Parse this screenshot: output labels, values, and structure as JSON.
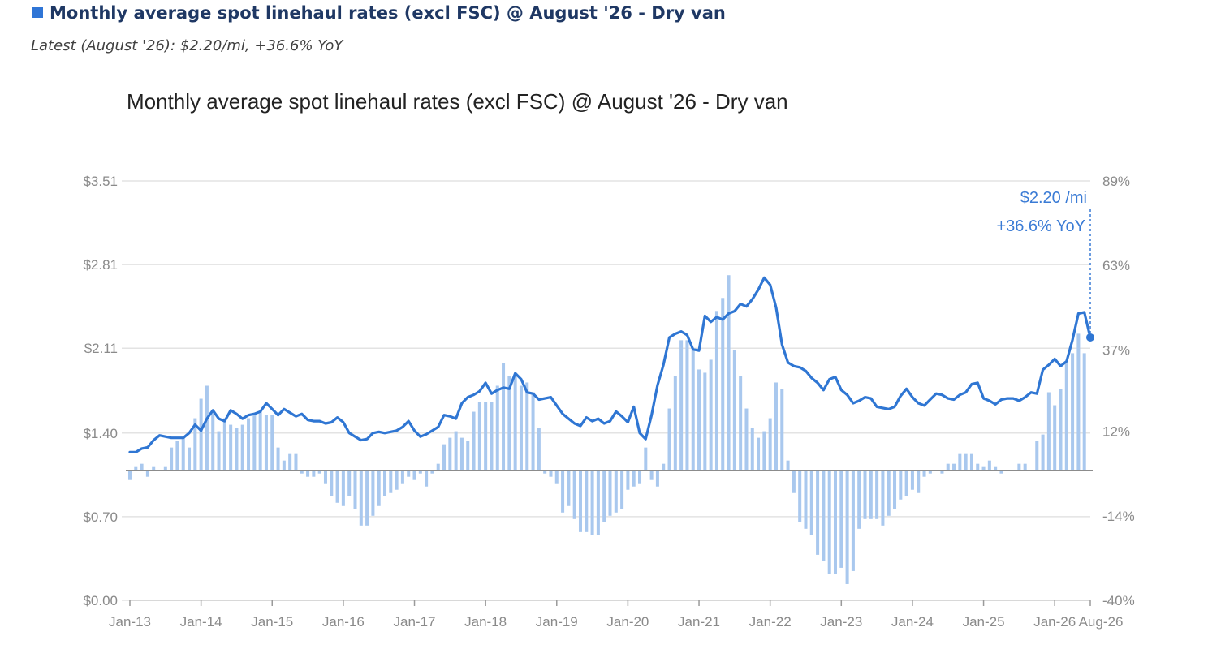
{
  "header": {
    "title": "Monthly average spot linehaul rates (excl FSC) @ August '26 - Dry van",
    "subtitle": "Latest (August '26): $2.20/mi, +36.6% YoY"
  },
  "colors": {
    "line": "#2F76D3",
    "bars": "#A9C8EE",
    "title": "#1F3864",
    "accent": "#3A7BD5",
    "grid": "#e3e3e3",
    "axis_text": "#8a8a8a"
  },
  "chart_data": {
    "type": "line",
    "title": "Monthly average spot linehaul rates (excl FSC) @ August '26 - Dry van",
    "grid": true,
    "legend": "none",
    "x_ticks": [
      "Jan-13",
      "Jan-14",
      "Jan-15",
      "Jan-16",
      "Jan-17",
      "Jan-18",
      "Jan-19",
      "Jan-20",
      "Jan-21",
      "Jan-22",
      "Jan-23",
      "Jan-24",
      "Jan-25",
      "Jan-26",
      "Aug-26"
    ],
    "y_left": {
      "ticks": [
        "$0.00",
        "$0.70",
        "$1.40",
        "$2.11",
        "$2.81",
        "$3.51"
      ],
      "values": [
        0,
        0.7,
        1.4,
        2.11,
        2.81,
        3.51
      ],
      "ylim": [
        0,
        3.51
      ]
    },
    "y_right": {
      "ticks": [
        "-40%",
        "-14%",
        "12%",
        "37%",
        "63%",
        "89%"
      ],
      "values": [
        -40,
        -14,
        12,
        37,
        63,
        89
      ],
      "ylim": [
        -40,
        89
      ]
    },
    "x_start": "2013-01",
    "annotation": {
      "rate": "$2.20 /mi",
      "yoy": "+36.6% YoY"
    },
    "series": [
      {
        "type": "line",
        "axis": "left",
        "values": [
          1.24,
          1.24,
          1.27,
          1.28,
          1.34,
          1.38,
          1.37,
          1.36,
          1.36,
          1.36,
          1.4,
          1.47,
          1.42,
          1.52,
          1.59,
          1.52,
          1.5,
          1.59,
          1.56,
          1.52,
          1.55,
          1.56,
          1.58,
          1.65,
          1.6,
          1.55,
          1.6,
          1.57,
          1.54,
          1.56,
          1.51,
          1.5,
          1.5,
          1.48,
          1.49,
          1.53,
          1.49,
          1.4,
          1.37,
          1.34,
          1.35,
          1.4,
          1.41,
          1.4,
          1.41,
          1.42,
          1.45,
          1.5,
          1.42,
          1.37,
          1.39,
          1.42,
          1.45,
          1.55,
          1.54,
          1.52,
          1.65,
          1.7,
          1.72,
          1.75,
          1.82,
          1.73,
          1.76,
          1.78,
          1.77,
          1.9,
          1.85,
          1.74,
          1.73,
          1.68,
          1.69,
          1.7,
          1.63,
          1.56,
          1.52,
          1.48,
          1.46,
          1.53,
          1.5,
          1.52,
          1.48,
          1.5,
          1.58,
          1.54,
          1.49,
          1.62,
          1.4,
          1.35,
          1.55,
          1.8,
          1.97,
          2.2,
          2.23,
          2.25,
          2.22,
          2.1,
          2.09,
          2.38,
          2.33,
          2.37,
          2.35,
          2.4,
          2.42,
          2.48,
          2.46,
          2.52,
          2.6,
          2.7,
          2.64,
          2.45,
          2.14,
          1.99,
          1.96,
          1.95,
          1.92,
          1.86,
          1.82,
          1.76,
          1.85,
          1.87,
          1.76,
          1.72,
          1.65,
          1.67,
          1.7,
          1.69,
          1.62,
          1.61,
          1.6,
          1.62,
          1.71,
          1.77,
          1.7,
          1.65,
          1.63,
          1.68,
          1.73,
          1.72,
          1.69,
          1.68,
          1.72,
          1.74,
          1.81,
          1.82,
          1.69,
          1.67,
          1.64,
          1.68,
          1.69,
          1.69,
          1.67,
          1.7,
          1.74,
          1.73,
          1.93,
          1.97,
          2.02,
          1.96,
          2.0,
          2.18,
          2.4,
          2.41,
          2.2
        ]
      },
      {
        "type": "bar",
        "axis": "right",
        "unit": "% YoY",
        "values": [
          -3,
          1,
          2,
          -2,
          1,
          0,
          1,
          7,
          9,
          10,
          7,
          16,
          22,
          26,
          18,
          12,
          16,
          14,
          13,
          14,
          16,
          17,
          18,
          17,
          17,
          7,
          3,
          5,
          5,
          -1,
          -2,
          -2,
          -1,
          -4,
          -8,
          -10,
          -11,
          -8,
          -12,
          -17,
          -17,
          -14,
          -11,
          -8,
          -7,
          -6,
          -4,
          -2,
          -3,
          -1,
          -5,
          -1,
          2,
          8,
          10,
          12,
          10,
          9,
          18,
          21,
          21,
          21,
          26,
          33,
          29,
          29,
          26,
          27,
          24,
          13,
          -1,
          -2,
          -4,
          -13,
          -11,
          -15,
          -19,
          -19,
          -20,
          -20,
          -16,
          -14,
          -13,
          -12,
          -6,
          -5,
          -4,
          7,
          -3,
          -5,
          2,
          19,
          29,
          40,
          40,
          37,
          31,
          30,
          34,
          49,
          53,
          60,
          37,
          29,
          19,
          13,
          10,
          12,
          16,
          27,
          25,
          3,
          -7,
          -16,
          -18,
          -20,
          -26,
          -28,
          -32,
          -32,
          -30,
          -35,
          -31,
          -18,
          -15,
          -15,
          -15,
          -17,
          -14,
          -12,
          -9,
          -8,
          -6,
          -7,
          -2,
          -1,
          0,
          -1,
          2,
          2,
          5,
          5,
          5,
          2,
          1,
          3,
          1,
          -1,
          0,
          0,
          2,
          2,
          0,
          9,
          11,
          24,
          20,
          25,
          33,
          36,
          42,
          36
        ]
      }
    ]
  }
}
